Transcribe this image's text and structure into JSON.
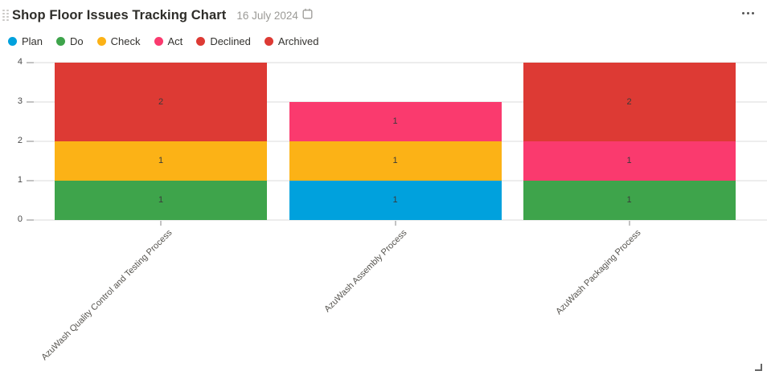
{
  "header": {
    "title": "Shop Floor Issues Tracking Chart",
    "date": "16 July 2024"
  },
  "chart_data": {
    "type": "bar",
    "stacked": true,
    "title": "Shop Floor Issues Tracking Chart",
    "categories": [
      "AzuWash Quality Control and Testing Process",
      "AzuWash Assembly Process",
      "AzuWash Packaging Process"
    ],
    "series": [
      {
        "name": "Plan",
        "color": "#00a1dd",
        "values": [
          0,
          1,
          0
        ]
      },
      {
        "name": "Do",
        "color": "#3ea44b",
        "values": [
          1,
          0,
          1
        ]
      },
      {
        "name": "Check",
        "color": "#fcb216",
        "values": [
          1,
          1,
          0
        ]
      },
      {
        "name": "Act",
        "color": "#fa3a6e",
        "values": [
          0,
          1,
          1
        ]
      },
      {
        "name": "Declined",
        "color": "#dd3a34",
        "values": [
          2,
          0,
          2
        ]
      },
      {
        "name": "Archived",
        "color": "#dd3a34",
        "values": [
          0,
          0,
          0
        ]
      }
    ],
    "xlabel": "",
    "ylabel": "",
    "ylim": [
      0,
      4
    ],
    "yticks": [
      0,
      1,
      2,
      3,
      4
    ],
    "grid": true,
    "legend_position": "top-left",
    "bar_value_labels": true
  }
}
